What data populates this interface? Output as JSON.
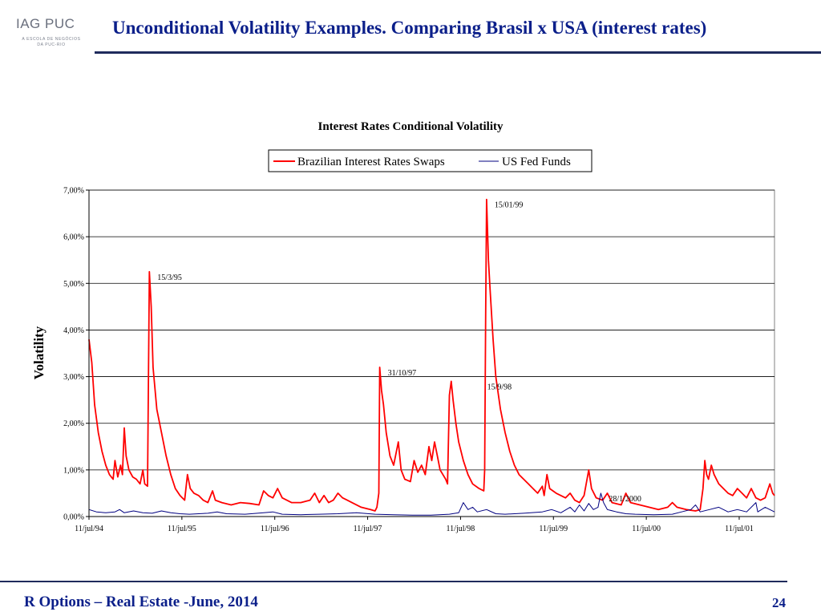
{
  "header": {
    "logo_main": "IAG PUC",
    "logo_sub_1": "A ESCOLA DE NEGÓCIOS",
    "logo_sub_2": "DA PUC-RIO",
    "title": "Unconditional Volatility Examples. Comparing Brasil x USA (interest rates)"
  },
  "footer": {
    "left": "R Options – Real Estate -June, 2014",
    "page_number": "24"
  },
  "colors": {
    "title": "#0b1f8a",
    "rule": "#1f2b5c",
    "brazil_series": "#ff0000",
    "us_series": "#000080"
  },
  "chart_data": {
    "type": "line",
    "title": "Interest Rates Conditional Volatility",
    "ylabel": "Volatility",
    "xlabel": "",
    "ylim": [
      0,
      7
    ],
    "y_ticks": [
      "0,00%",
      "1,00%",
      "2,00%",
      "3,00%",
      "4,00%",
      "5,00%",
      "6,00%",
      "7,00%"
    ],
    "x_range": [
      1994.52,
      2001.9
    ],
    "x_ticks": [
      {
        "x": 1994.52,
        "label": "11/jul/94"
      },
      {
        "x": 1995.52,
        "label": "11/jul/95"
      },
      {
        "x": 1996.52,
        "label": "11/jul/96"
      },
      {
        "x": 1997.52,
        "label": "11/jul/97"
      },
      {
        "x": 1998.52,
        "label": "11/jul/98"
      },
      {
        "x": 1999.52,
        "label": "11/jul/99"
      },
      {
        "x": 2000.52,
        "label": "11/jul/00"
      },
      {
        "x": 2001.52,
        "label": "11/jul/01"
      }
    ],
    "grid": "horizontal",
    "legend": "top",
    "series": [
      {
        "name": "Brazilian Interest Rates Swaps",
        "color": "#ff0000",
        "points": [
          [
            1994.52,
            3.8
          ],
          [
            1994.55,
            3.3
          ],
          [
            1994.58,
            2.4
          ],
          [
            1994.62,
            1.8
          ],
          [
            1994.66,
            1.4
          ],
          [
            1994.7,
            1.1
          ],
          [
            1994.74,
            0.9
          ],
          [
            1994.78,
            0.8
          ],
          [
            1994.8,
            1.2
          ],
          [
            1994.83,
            0.85
          ],
          [
            1994.86,
            1.1
          ],
          [
            1994.88,
            0.9
          ],
          [
            1994.9,
            1.9
          ],
          [
            1994.92,
            1.3
          ],
          [
            1994.95,
            1.0
          ],
          [
            1994.99,
            0.85
          ],
          [
            1995.03,
            0.8
          ],
          [
            1995.07,
            0.7
          ],
          [
            1995.1,
            1.0
          ],
          [
            1995.12,
            0.7
          ],
          [
            1995.15,
            0.65
          ],
          [
            1995.17,
            5.25
          ],
          [
            1995.19,
            4.5
          ],
          [
            1995.21,
            3.2
          ],
          [
            1995.25,
            2.3
          ],
          [
            1995.3,
            1.8
          ],
          [
            1995.35,
            1.3
          ],
          [
            1995.4,
            0.9
          ],
          [
            1995.45,
            0.6
          ],
          [
            1995.5,
            0.45
          ],
          [
            1995.55,
            0.35
          ],
          [
            1995.58,
            0.9
          ],
          [
            1995.61,
            0.6
          ],
          [
            1995.65,
            0.5
          ],
          [
            1995.7,
            0.45
          ],
          [
            1995.75,
            0.35
          ],
          [
            1995.8,
            0.3
          ],
          [
            1995.85,
            0.55
          ],
          [
            1995.88,
            0.35
          ],
          [
            1995.95,
            0.3
          ],
          [
            1996.05,
            0.25
          ],
          [
            1996.15,
            0.3
          ],
          [
            1996.25,
            0.28
          ],
          [
            1996.35,
            0.25
          ],
          [
            1996.4,
            0.55
          ],
          [
            1996.45,
            0.45
          ],
          [
            1996.5,
            0.4
          ],
          [
            1996.55,
            0.6
          ],
          [
            1996.6,
            0.4
          ],
          [
            1996.7,
            0.3
          ],
          [
            1996.8,
            0.3
          ],
          [
            1996.9,
            0.35
          ],
          [
            1996.95,
            0.5
          ],
          [
            1997.0,
            0.3
          ],
          [
            1997.05,
            0.45
          ],
          [
            1997.1,
            0.3
          ],
          [
            1997.15,
            0.35
          ],
          [
            1997.2,
            0.5
          ],
          [
            1997.25,
            0.4
          ],
          [
            1997.3,
            0.35
          ],
          [
            1997.35,
            0.3
          ],
          [
            1997.45,
            0.2
          ],
          [
            1997.55,
            0.15
          ],
          [
            1997.6,
            0.12
          ],
          [
            1997.62,
            0.2
          ],
          [
            1997.64,
            0.5
          ],
          [
            1997.65,
            3.2
          ],
          [
            1997.67,
            2.7
          ],
          [
            1997.69,
            2.4
          ],
          [
            1997.72,
            1.8
          ],
          [
            1997.76,
            1.3
          ],
          [
            1997.8,
            1.1
          ],
          [
            1997.85,
            1.6
          ],
          [
            1997.88,
            1.0
          ],
          [
            1997.92,
            0.8
          ],
          [
            1997.98,
            0.75
          ],
          [
            1998.02,
            1.2
          ],
          [
            1998.06,
            0.95
          ],
          [
            1998.1,
            1.1
          ],
          [
            1998.14,
            0.9
          ],
          [
            1998.18,
            1.5
          ],
          [
            1998.21,
            1.2
          ],
          [
            1998.24,
            1.6
          ],
          [
            1998.27,
            1.3
          ],
          [
            1998.3,
            1.0
          ],
          [
            1998.33,
            0.9
          ],
          [
            1998.36,
            0.8
          ],
          [
            1998.38,
            0.7
          ],
          [
            1998.4,
            2.6
          ],
          [
            1998.42,
            2.9
          ],
          [
            1998.44,
            2.5
          ],
          [
            1998.47,
            2.0
          ],
          [
            1998.5,
            1.6
          ],
          [
            1998.55,
            1.2
          ],
          [
            1998.6,
            0.9
          ],
          [
            1998.65,
            0.7
          ],
          [
            1998.72,
            0.6
          ],
          [
            1998.77,
            0.55
          ],
          [
            1998.78,
            1.0
          ],
          [
            1998.79,
            4.2
          ],
          [
            1998.8,
            6.8
          ],
          [
            1998.82,
            5.5
          ],
          [
            1998.84,
            4.8
          ],
          [
            1998.87,
            3.8
          ],
          [
            1998.9,
            3.0
          ],
          [
            1998.95,
            2.3
          ],
          [
            1999.0,
            1.8
          ],
          [
            1999.05,
            1.4
          ],
          [
            1999.1,
            1.1
          ],
          [
            1999.15,
            0.9
          ],
          [
            1999.2,
            0.8
          ],
          [
            1999.25,
            0.7
          ],
          [
            1999.3,
            0.6
          ],
          [
            1999.35,
            0.5
          ],
          [
            1999.4,
            0.65
          ],
          [
            1999.42,
            0.45
          ],
          [
            1999.45,
            0.9
          ],
          [
            1999.48,
            0.6
          ],
          [
            1999.55,
            0.5
          ],
          [
            1999.6,
            0.45
          ],
          [
            1999.65,
            0.4
          ],
          [
            1999.7,
            0.5
          ],
          [
            1999.75,
            0.35
          ],
          [
            1999.8,
            0.3
          ],
          [
            1999.85,
            0.45
          ],
          [
            1999.9,
            1.0
          ],
          [
            1999.93,
            0.6
          ],
          [
            1999.98,
            0.4
          ],
          [
            2000.05,
            0.35
          ],
          [
            2000.1,
            0.5
          ],
          [
            2000.15,
            0.3
          ],
          [
            2000.25,
            0.25
          ],
          [
            2000.3,
            0.5
          ],
          [
            2000.35,
            0.3
          ],
          [
            2000.45,
            0.25
          ],
          [
            2000.55,
            0.2
          ],
          [
            2000.65,
            0.15
          ],
          [
            2000.75,
            0.2
          ],
          [
            2000.8,
            0.3
          ],
          [
            2000.85,
            0.2
          ],
          [
            2000.95,
            0.15
          ],
          [
            2001.05,
            0.12
          ],
          [
            2001.1,
            0.15
          ],
          [
            2001.13,
            0.6
          ],
          [
            2001.15,
            1.2
          ],
          [
            2001.17,
            0.9
          ],
          [
            2001.19,
            0.8
          ],
          [
            2001.22,
            1.1
          ],
          [
            2001.25,
            0.9
          ],
          [
            2001.3,
            0.7
          ],
          [
            2001.35,
            0.6
          ],
          [
            2001.4,
            0.5
          ],
          [
            2001.45,
            0.45
          ],
          [
            2001.5,
            0.6
          ],
          [
            2001.55,
            0.5
          ],
          [
            2001.6,
            0.4
          ],
          [
            2001.65,
            0.6
          ],
          [
            2001.7,
            0.4
          ],
          [
            2001.75,
            0.35
          ],
          [
            2001.8,
            0.4
          ],
          [
            2001.85,
            0.7
          ],
          [
            2001.88,
            0.5
          ],
          [
            2001.9,
            0.45
          ]
        ]
      },
      {
        "name": "US Fed Funds",
        "color": "#000080",
        "points": [
          [
            1994.52,
            0.15
          ],
          [
            1994.6,
            0.1
          ],
          [
            1994.7,
            0.08
          ],
          [
            1994.8,
            0.1
          ],
          [
            1994.85,
            0.15
          ],
          [
            1994.9,
            0.08
          ],
          [
            1995.0,
            0.12
          ],
          [
            1995.1,
            0.08
          ],
          [
            1995.2,
            0.07
          ],
          [
            1995.3,
            0.12
          ],
          [
            1995.4,
            0.08
          ],
          [
            1995.5,
            0.06
          ],
          [
            1995.6,
            0.05
          ],
          [
            1995.8,
            0.07
          ],
          [
            1995.9,
            0.1
          ],
          [
            1996.0,
            0.06
          ],
          [
            1996.2,
            0.05
          ],
          [
            1996.4,
            0.08
          ],
          [
            1996.5,
            0.1
          ],
          [
            1996.6,
            0.05
          ],
          [
            1996.8,
            0.04
          ],
          [
            1997.0,
            0.05
          ],
          [
            1997.2,
            0.06
          ],
          [
            1997.4,
            0.08
          ],
          [
            1997.6,
            0.05
          ],
          [
            1997.8,
            0.04
          ],
          [
            1998.0,
            0.03
          ],
          [
            1998.2,
            0.03
          ],
          [
            1998.4,
            0.05
          ],
          [
            1998.5,
            0.08
          ],
          [
            1998.55,
            0.3
          ],
          [
            1998.6,
            0.15
          ],
          [
            1998.65,
            0.2
          ],
          [
            1998.7,
            0.1
          ],
          [
            1998.8,
            0.15
          ],
          [
            1998.9,
            0.06
          ],
          [
            1999.0,
            0.05
          ],
          [
            1999.2,
            0.07
          ],
          [
            1999.4,
            0.1
          ],
          [
            1999.5,
            0.15
          ],
          [
            1999.6,
            0.08
          ],
          [
            1999.7,
            0.2
          ],
          [
            1999.75,
            0.1
          ],
          [
            1999.8,
            0.25
          ],
          [
            1999.85,
            0.12
          ],
          [
            1999.9,
            0.28
          ],
          [
            1999.95,
            0.15
          ],
          [
            2000.0,
            0.2
          ],
          [
            2000.03,
            0.5
          ],
          [
            2000.06,
            0.3
          ],
          [
            2000.1,
            0.15
          ],
          [
            2000.2,
            0.1
          ],
          [
            2000.3,
            0.06
          ],
          [
            2000.4,
            0.05
          ],
          [
            2000.6,
            0.04
          ],
          [
            2000.8,
            0.05
          ],
          [
            2000.9,
            0.1
          ],
          [
            2001.0,
            0.15
          ],
          [
            2001.05,
            0.25
          ],
          [
            2001.1,
            0.1
          ],
          [
            2001.2,
            0.15
          ],
          [
            2001.3,
            0.2
          ],
          [
            2001.4,
            0.1
          ],
          [
            2001.5,
            0.15
          ],
          [
            2001.6,
            0.1
          ],
          [
            2001.7,
            0.3
          ],
          [
            2001.72,
            0.1
          ],
          [
            2001.8,
            0.2
          ],
          [
            2001.9,
            0.1
          ]
        ]
      }
    ],
    "annotations": [
      {
        "x": 1995.17,
        "y": 5.25,
        "label": "15/3/95"
      },
      {
        "x": 1997.65,
        "y": 3.2,
        "label": "31/10/97"
      },
      {
        "x": 1998.72,
        "y": 2.9,
        "label": "15/9/98"
      },
      {
        "x": 1998.8,
        "y": 6.8,
        "label": "15/01/99"
      },
      {
        "x": 2000.03,
        "y": 0.5,
        "label": "28/1/2000"
      }
    ]
  }
}
